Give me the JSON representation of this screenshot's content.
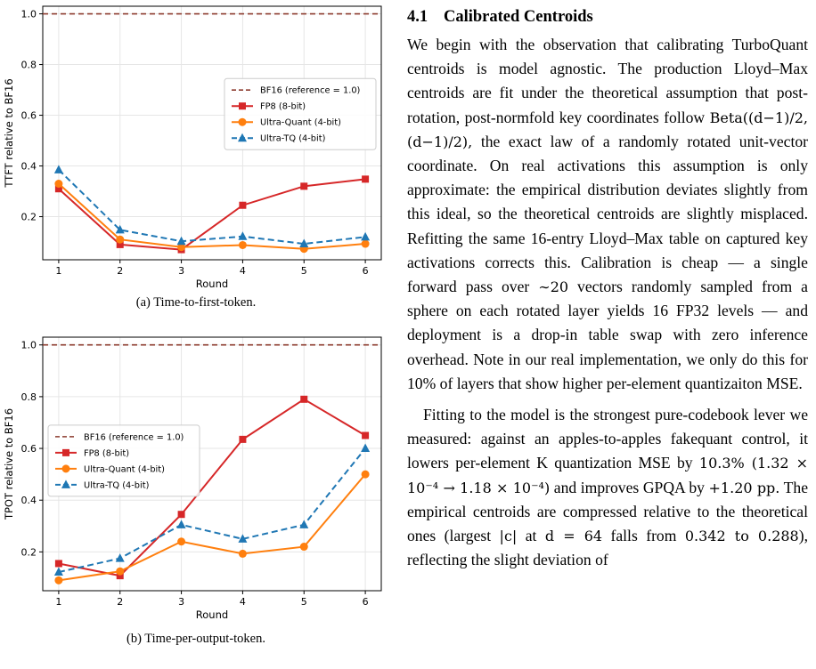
{
  "figures": [
    {
      "caption": "(a) Time-to-first-token.",
      "chart_data": {
        "type": "line",
        "xlabel": "Round",
        "ylabel": "TTFT relative to BF16",
        "x": [
          1,
          2,
          3,
          4,
          5,
          6
        ],
        "ylim": [
          0.03,
          1.03
        ],
        "yticks": [
          "0.2",
          "0.4",
          "0.6",
          "0.8",
          "1.0"
        ],
        "grid": true,
        "legend_position": "right",
        "reference": {
          "name": "BF16 (reference = 1.0)",
          "value": 1.0,
          "color": "#8c3b2e"
        },
        "series": [
          {
            "name": "FP8 (8-bit)",
            "color": "#d62728",
            "marker": "square",
            "dashed": false,
            "values": [
              0.31,
              0.09,
              0.07,
              0.245,
              0.32,
              0.348
            ]
          },
          {
            "name": "Ultra-Quant (4-bit)",
            "color": "#ff7f0e",
            "marker": "circle",
            "dashed": false,
            "values": [
              0.33,
              0.11,
              0.08,
              0.088,
              0.073,
              0.093
            ]
          },
          {
            "name": "Ultra-TQ (4-bit)",
            "color": "#1f77b4",
            "marker": "triangle",
            "dashed": true,
            "values": [
              0.385,
              0.148,
              0.103,
              0.122,
              0.093,
              0.12
            ]
          }
        ]
      }
    },
    {
      "caption": "(b) Time-per-output-token.",
      "chart_data": {
        "type": "line",
        "xlabel": "Round",
        "ylabel": "TPOT relative to BF16",
        "x": [
          1,
          2,
          3,
          4,
          5,
          6
        ],
        "ylim": [
          0.05,
          1.03
        ],
        "yticks": [
          "0.2",
          "0.4",
          "0.6",
          "0.8",
          "1.0"
        ],
        "grid": true,
        "legend_position": "left",
        "reference": {
          "name": "BF16 (reference = 1.0)",
          "value": 1.0,
          "color": "#8c3b2e"
        },
        "series": [
          {
            "name": "FP8 (8-bit)",
            "color": "#d62728",
            "marker": "square",
            "dashed": false,
            "values": [
              0.155,
              0.108,
              0.345,
              0.635,
              0.79,
              0.65
            ]
          },
          {
            "name": "Ultra-Quant (4-bit)",
            "color": "#ff7f0e",
            "marker": "circle",
            "dashed": false,
            "values": [
              0.09,
              0.125,
              0.24,
              0.193,
              0.22,
              0.5
            ]
          },
          {
            "name": "Ultra-TQ (4-bit)",
            "color": "#1f77b4",
            "marker": "triangle",
            "dashed": true,
            "values": [
              0.122,
              0.175,
              0.305,
              0.25,
              0.305,
              0.6
            ]
          }
        ]
      }
    }
  ],
  "section": {
    "number": "4.1",
    "title": "Calibrated Centroids"
  },
  "para1": {
    "t1": "We begin with the observation that calibrating TurboQuant centroids is model agnostic. The production Lloyd–Max centroids are fit under the theoretical assumption that post-rotation, post-normfold key coordinates follow ",
    "m1": "Beta((d−1)/2, (d−1)/2),",
    "t2": " the exact law of a randomly rotated unit-vector coordinate. On real activations this assumption is only approximate: the empirical distribution deviates slightly from this ideal, so the theoretical centroids are slightly misplaced. Refitting the same 16-entry Lloyd–Max table on captured key activations corrects this. Calibration is cheap — a single forward pass over ",
    "m2": "∼20",
    "t3": " vectors randomly sampled from a sphere on each rotated layer yields 16 FP32 levels — and deployment is a drop-in table swap with zero inference overhead. Note in our real implementation, we only do this for 10% of layers that show higher per-element quantizaiton MSE."
  },
  "para2": {
    "t1": "Fitting to the model is the strongest pure-codebook lever we measured: against an apples-to-apples fakequant control, it lowers per-element K quantization MSE by ",
    "m1": "10.3% (1.32 × 10⁻⁴ → 1.18 × 10⁻⁴)",
    "t2": " and improves GPQA by ",
    "m2": "+1.20 pp.",
    "t3": " The empirical centroids are compressed relative to the theoretical ones (largest ",
    "m3": "|c|",
    "t4": " at ",
    "m4": "d = 64",
    "t5": " falls from ",
    "m5": "0.342 to 0.288",
    "t6": "), reflecting the slight deviation of"
  }
}
